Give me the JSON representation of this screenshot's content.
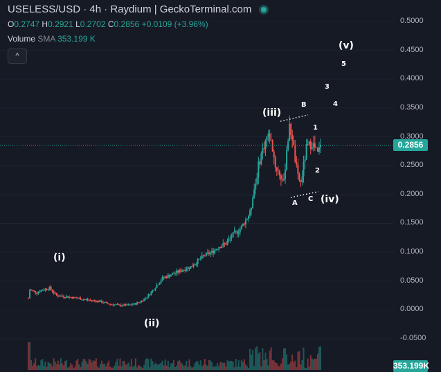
{
  "header": {
    "title": "USELESS/USD · 4h · Raydium | GeckoTerminal.com",
    "ohlc": {
      "o_label": "O",
      "o": "0.2747",
      "h_label": "H",
      "h": "0.2921",
      "l_label": "L",
      "l": "0.2702",
      "c_label": "C",
      "c": "0.2856",
      "change": "+0.0109 (+3.96%)"
    },
    "volume": {
      "label": "Volume",
      "indicator": "SMA",
      "value": "353.199 K"
    },
    "collapse_icon": "chevron-up-icon",
    "collapse_glyph": "^"
  },
  "colors": {
    "bg": "#161a25",
    "up": "#26a69a",
    "down": "#ef5350",
    "text": "#d1d4dc"
  },
  "chart_data": {
    "type": "candlestick",
    "symbol": "USELESS/USD",
    "interval": "4h",
    "ylim": [
      -0.06,
      0.52
    ],
    "y_ticks": [
      "0.5000",
      "0.4500",
      "0.4000",
      "0.3500",
      "0.3000",
      "0.2500",
      "0.2000",
      "0.1500",
      "0.1000",
      "0.0500",
      "0.0000",
      "-0.0500"
    ],
    "last_price": "0.2856",
    "last_price_value": 0.2856,
    "volume_last": "353.199K",
    "price_path": [
      [
        0,
        0.02
      ],
      [
        2,
        0.035
      ],
      [
        12,
        0.03
      ],
      [
        20,
        0.035
      ],
      [
        30,
        0.038
      ],
      [
        40,
        0.025
      ],
      [
        60,
        0.022
      ],
      [
        80,
        0.018
      ],
      [
        100,
        0.015
      ],
      [
        115,
        0.01
      ],
      [
        130,
        0.008
      ],
      [
        140,
        0.008
      ],
      [
        150,
        0.01
      ],
      [
        160,
        0.015
      ],
      [
        170,
        0.025
      ],
      [
        180,
        0.04
      ],
      [
        190,
        0.055
      ],
      [
        200,
        0.06
      ],
      [
        210,
        0.065
      ],
      [
        220,
        0.07
      ],
      [
        230,
        0.075
      ],
      [
        240,
        0.085
      ],
      [
        250,
        0.095
      ],
      [
        260,
        0.1
      ],
      [
        270,
        0.11
      ],
      [
        280,
        0.115
      ],
      [
        290,
        0.13
      ],
      [
        300,
        0.14
      ],
      [
        305,
        0.15
      ],
      [
        310,
        0.16
      ],
      [
        315,
        0.17
      ],
      [
        318,
        0.2
      ],
      [
        322,
        0.22
      ],
      [
        326,
        0.25
      ],
      [
        330,
        0.27
      ],
      [
        334,
        0.285
      ],
      [
        338,
        0.3
      ],
      [
        342,
        0.3
      ],
      [
        346,
        0.28
      ],
      [
        350,
        0.25
      ],
      [
        354,
        0.24
      ],
      [
        358,
        0.23
      ],
      [
        362,
        0.22
      ],
      [
        366,
        0.28
      ],
      [
        370,
        0.315
      ],
      [
        374,
        0.3
      ],
      [
        378,
        0.26
      ],
      [
        382,
        0.23
      ],
      [
        386,
        0.22
      ],
      [
        390,
        0.25
      ],
      [
        394,
        0.28
      ],
      [
        398,
        0.285
      ],
      [
        402,
        0.29
      ],
      [
        406,
        0.28
      ],
      [
        410,
        0.27
      ],
      [
        414,
        0.2856
      ]
    ],
    "annotations": [
      {
        "label": "(i)",
        "size": "big"
      },
      {
        "label": "(ii)",
        "size": "big"
      },
      {
        "label": "(iii)",
        "size": "big"
      },
      {
        "label": "(iv)",
        "size": "big"
      },
      {
        "label": "(v)",
        "size": "big"
      },
      {
        "label": "A",
        "size": "small"
      },
      {
        "label": "B",
        "size": "small"
      },
      {
        "label": "C",
        "size": "small"
      },
      {
        "label": "1",
        "size": "small"
      },
      {
        "label": "2",
        "size": "small"
      },
      {
        "label": "3",
        "size": "small"
      },
      {
        "label": "4",
        "size": "small"
      },
      {
        "label": "5",
        "size": "small"
      }
    ]
  }
}
